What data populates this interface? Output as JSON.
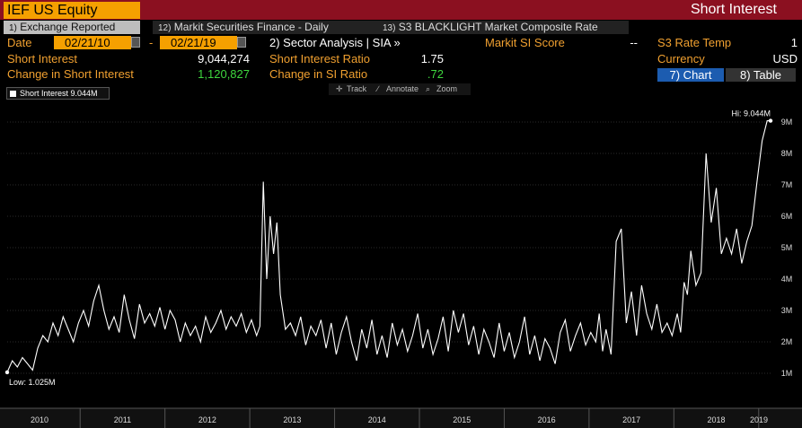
{
  "header": {
    "ticker": "IEF US Equity",
    "title": "Short Interest"
  },
  "tabs": [
    {
      "num": "1)",
      "label": "Exchange Reported"
    },
    {
      "num": "12)",
      "label": "Markit Securities Finance - Daily"
    },
    {
      "num": "13)",
      "label": "S3 BLACKLIGHT Market Composite Rate"
    }
  ],
  "info": {
    "date_label": "Date",
    "date_from": "02/21/10",
    "date_sep": "-",
    "date_to": "02/21/19",
    "sector_label": "2) Sector Analysis | SIA »",
    "markit_label": "Markit SI Score",
    "markit_value": "--",
    "s3_label": "S3 Rate Temp",
    "s3_value": "1",
    "si_label": "Short Interest",
    "si_value": "9,044,274",
    "sir_label": "Short Interest Ratio",
    "sir_value": "1.75",
    "currency_label": "Currency",
    "currency_value": "USD",
    "chg_label": "Change in Short Interest",
    "chg_value": "1,120,827",
    "chg_ratio_label": "Change in SI Ratio",
    "chg_ratio_value": ".72"
  },
  "view_buttons": {
    "chart": "7) Chart",
    "table": "8) Table"
  },
  "toolbar": {
    "track": "Track",
    "annotate": "Annotate",
    "zoom": "Zoom"
  },
  "colors": {
    "accent": "#f5a000",
    "title_bar": "#8b1020",
    "chart_button": "#1c5cb0",
    "line": "#ffffff"
  },
  "chart_data": {
    "type": "line",
    "legend": "Short Interest 9.044M",
    "hi_label": "Hi: 9.044M",
    "low_label": "Low: 1.025M",
    "ylim": [
      0,
      9.6
    ],
    "yticks": [
      1,
      2,
      3,
      4,
      5,
      6,
      7,
      8,
      9
    ],
    "ytick_labels": [
      "1M",
      "2M",
      "3M",
      "4M",
      "5M",
      "6M",
      "7M",
      "8M",
      "9M"
    ],
    "xlim": [
      2010.14,
      2019.14
    ],
    "year_labels": [
      "2010",
      "2011",
      "2012",
      "2013",
      "2014",
      "2015",
      "2016",
      "2017",
      "2018",
      "2019"
    ],
    "series": [
      {
        "name": "Short Interest",
        "x": [
          2010.14,
          2010.2,
          2010.26,
          2010.32,
          2010.38,
          2010.44,
          2010.5,
          2010.56,
          2010.62,
          2010.68,
          2010.74,
          2010.8,
          2010.86,
          2010.92,
          2010.98,
          2011.04,
          2011.1,
          2011.16,
          2011.22,
          2011.28,
          2011.34,
          2011.4,
          2011.46,
          2011.52,
          2011.58,
          2011.64,
          2011.7,
          2011.76,
          2011.82,
          2011.88,
          2011.94,
          2012.0,
          2012.06,
          2012.12,
          2012.18,
          2012.24,
          2012.3,
          2012.36,
          2012.42,
          2012.48,
          2012.54,
          2012.6,
          2012.66,
          2012.72,
          2012.78,
          2012.84,
          2012.9,
          2012.96,
          2013.02,
          2013.08,
          2013.12,
          2013.16,
          2013.2,
          2013.24,
          2013.28,
          2013.32,
          2013.36,
          2013.42,
          2013.48,
          2013.54,
          2013.6,
          2013.66,
          2013.72,
          2013.78,
          2013.84,
          2013.9,
          2013.96,
          2014.02,
          2014.08,
          2014.14,
          2014.2,
          2014.26,
          2014.32,
          2014.38,
          2014.44,
          2014.5,
          2014.56,
          2014.62,
          2014.68,
          2014.74,
          2014.8,
          2014.86,
          2014.92,
          2014.98,
          2015.04,
          2015.1,
          2015.16,
          2015.22,
          2015.28,
          2015.34,
          2015.4,
          2015.46,
          2015.52,
          2015.58,
          2015.64,
          2015.7,
          2015.76,
          2015.82,
          2015.88,
          2015.94,
          2016.0,
          2016.06,
          2016.12,
          2016.18,
          2016.24,
          2016.3,
          2016.36,
          2016.42,
          2016.48,
          2016.54,
          2016.6,
          2016.66,
          2016.72,
          2016.78,
          2016.84,
          2016.9,
          2016.96,
          2017.02,
          2017.08,
          2017.12,
          2017.16,
          2017.2,
          2017.26,
          2017.32,
          2017.38,
          2017.44,
          2017.5,
          2017.56,
          2017.62,
          2017.68,
          2017.74,
          2017.8,
          2017.86,
          2017.92,
          2017.98,
          2018.04,
          2018.08,
          2018.12,
          2018.16,
          2018.2,
          2018.26,
          2018.32,
          2018.38,
          2018.44,
          2018.5,
          2018.56,
          2018.62,
          2018.68,
          2018.74,
          2018.8,
          2018.86,
          2018.92,
          2018.98,
          2019.04,
          2019.1,
          2019.14
        ],
        "values": [
          1.03,
          1.4,
          1.2,
          1.5,
          1.3,
          1.1,
          1.8,
          2.2,
          2.0,
          2.6,
          2.2,
          2.8,
          2.4,
          2.0,
          2.6,
          3.0,
          2.5,
          3.3,
          3.8,
          3.0,
          2.4,
          2.8,
          2.3,
          3.5,
          2.7,
          2.1,
          3.2,
          2.6,
          2.9,
          2.5,
          3.1,
          2.4,
          3.0,
          2.7,
          2.0,
          2.6,
          2.2,
          2.5,
          2.0,
          2.8,
          2.3,
          2.6,
          3.0,
          2.4,
          2.8,
          2.5,
          2.9,
          2.3,
          2.7,
          2.2,
          2.5,
          7.1,
          4.0,
          6.0,
          4.8,
          5.8,
          3.5,
          2.4,
          2.6,
          2.2,
          2.8,
          1.9,
          2.5,
          2.2,
          2.7,
          1.8,
          2.6,
          1.6,
          2.3,
          2.8,
          2.0,
          1.4,
          2.4,
          1.8,
          2.7,
          1.6,
          2.2,
          1.5,
          2.6,
          1.9,
          2.4,
          1.7,
          2.2,
          2.9,
          1.8,
          2.4,
          1.6,
          2.1,
          2.8,
          1.7,
          3.0,
          2.3,
          2.9,
          1.9,
          2.5,
          1.6,
          2.4,
          2.0,
          1.5,
          2.6,
          1.7,
          2.3,
          1.5,
          2.0,
          2.8,
          1.6,
          2.2,
          1.4,
          2.1,
          1.8,
          1.3,
          2.3,
          2.7,
          1.7,
          2.2,
          2.6,
          1.9,
          2.3,
          2.0,
          2.9,
          1.7,
          2.4,
          1.6,
          5.2,
          5.6,
          2.6,
          3.6,
          2.2,
          3.8,
          2.9,
          2.4,
          3.2,
          2.3,
          2.6,
          2.2,
          2.9,
          2.3,
          3.9,
          3.5,
          4.9,
          3.8,
          4.2,
          8.0,
          5.8,
          6.9,
          4.8,
          5.3,
          4.8,
          5.6,
          4.5,
          5.2,
          5.7,
          7.1,
          8.4,
          9.04,
          9.04
        ]
      }
    ]
  }
}
